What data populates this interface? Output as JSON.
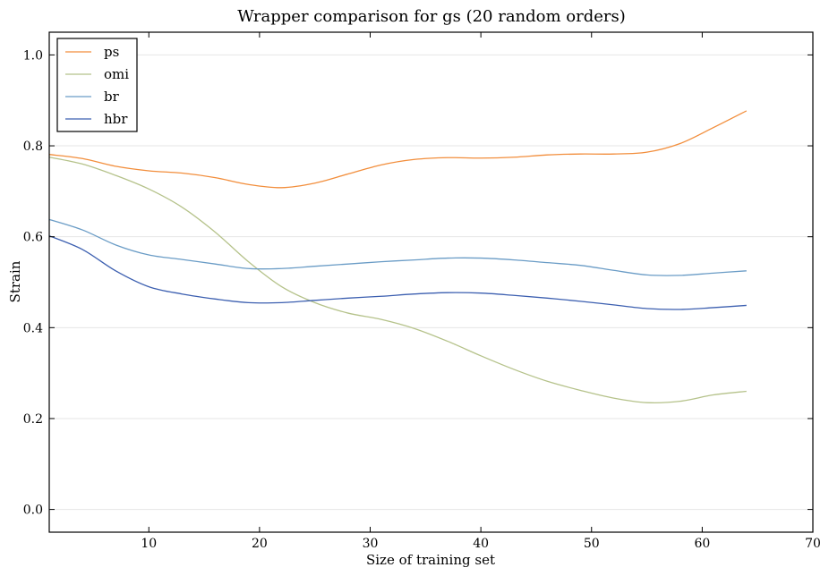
{
  "chart_data": {
    "type": "line",
    "title": "Wrapper comparison for gs (20 random orders)",
    "xlabel": "Size of training set",
    "ylabel": "Strain",
    "xlim": [
      1,
      70
    ],
    "ylim": [
      -0.05,
      1.05
    ],
    "xticks": [
      10,
      20,
      30,
      40,
      50,
      60,
      70
    ],
    "yticks": [
      0.0,
      0.2,
      0.4,
      0.6,
      0.8,
      1.0
    ],
    "xtick_labels": [
      "10",
      "20",
      "30",
      "40",
      "50",
      "60",
      "70"
    ],
    "ytick_labels": [
      "0.0",
      "0.2",
      "0.4",
      "0.6",
      "0.8",
      "1.0"
    ],
    "grid": "horizontal",
    "legend_position": "top-left",
    "x": [
      1,
      4,
      7,
      10,
      13,
      16,
      19,
      22,
      25,
      28,
      31,
      34,
      37,
      40,
      43,
      46,
      49,
      52,
      55,
      58,
      61,
      64
    ],
    "series": [
      {
        "name": "ps",
        "color": "#f28e3c",
        "values": [
          0.781,
          0.772,
          0.755,
          0.745,
          0.74,
          0.73,
          0.715,
          0.708,
          0.718,
          0.738,
          0.758,
          0.77,
          0.774,
          0.773,
          0.775,
          0.78,
          0.782,
          0.782,
          0.786,
          0.805,
          0.84,
          0.877
        ]
      },
      {
        "name": "omi",
        "color": "#b5c28a",
        "values": [
          0.775,
          0.76,
          0.735,
          0.705,
          0.665,
          0.61,
          0.545,
          0.49,
          0.455,
          0.432,
          0.418,
          0.398,
          0.37,
          0.338,
          0.308,
          0.282,
          0.262,
          0.245,
          0.235,
          0.238,
          0.252,
          0.26
        ]
      },
      {
        "name": "br",
        "color": "#6a9cc6",
        "values": [
          0.638,
          0.615,
          0.582,
          0.56,
          0.55,
          0.54,
          0.53,
          0.53,
          0.535,
          0.54,
          0.545,
          0.549,
          0.553,
          0.553,
          0.549,
          0.543,
          0.537,
          0.526,
          0.516,
          0.515,
          0.52,
          0.525
        ]
      },
      {
        "name": "hbr",
        "color": "#3c5fb0",
        "values": [
          0.602,
          0.572,
          0.525,
          0.49,
          0.474,
          0.463,
          0.455,
          0.455,
          0.46,
          0.465,
          0.469,
          0.474,
          0.477,
          0.476,
          0.471,
          0.465,
          0.458,
          0.45,
          0.442,
          0.44,
          0.444,
          0.449
        ]
      }
    ]
  }
}
